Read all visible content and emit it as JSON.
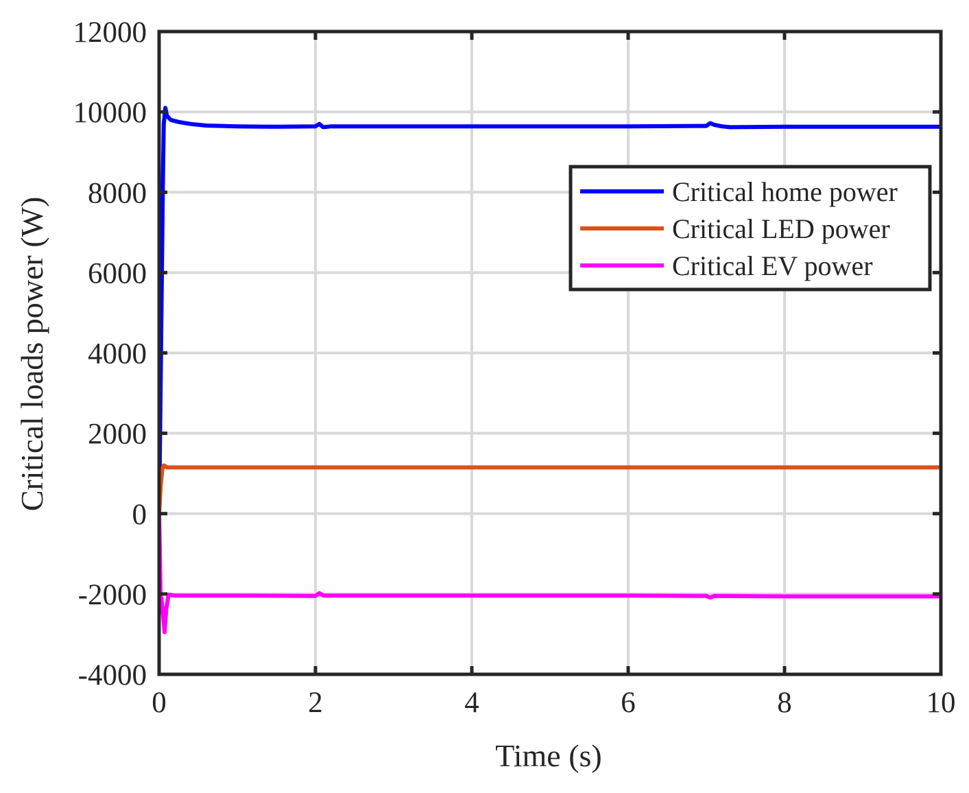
{
  "chart_data": {
    "type": "line",
    "title": "",
    "xlabel": "Time (s)",
    "ylabel": "Critical loads power (W)",
    "xlim": [
      0,
      10
    ],
    "ylim": [
      -4000,
      12000
    ],
    "xticks": [
      0,
      2,
      4,
      6,
      8,
      10
    ],
    "yticks": [
      -4000,
      -2000,
      0,
      2000,
      4000,
      6000,
      8000,
      10000,
      12000
    ],
    "xtick_labels": [
      "0",
      "2",
      "4",
      "6",
      "8",
      "10"
    ],
    "ytick_labels": [
      "-4000",
      "-2000",
      "0",
      "2000",
      "4000",
      "6000",
      "8000",
      "10000",
      "12000"
    ],
    "grid": true,
    "legend_position": "top-right",
    "series": [
      {
        "name": "Critical home power",
        "color": "#0000FF",
        "x": [
          0,
          0.01,
          0.03,
          0.05,
          0.06,
          0.08,
          0.1,
          0.15,
          0.25,
          0.4,
          0.6,
          0.8,
          1.0,
          1.5,
          2.0,
          2.05,
          2.08,
          2.1,
          2.2,
          3,
          4,
          5,
          6,
          7.0,
          7.05,
          7.1,
          7.2,
          7.3,
          8,
          9,
          10
        ],
        "y": [
          0,
          1500,
          5000,
          8500,
          9700,
          10100,
          9900,
          9800,
          9750,
          9700,
          9660,
          9650,
          9640,
          9630,
          9640,
          9700,
          9650,
          9620,
          9640,
          9640,
          9640,
          9640,
          9640,
          9650,
          9720,
          9680,
          9640,
          9620,
          9630,
          9630,
          9630
        ]
      },
      {
        "name": "Critical LED power",
        "color": "#D95319",
        "x": [
          0,
          0.02,
          0.04,
          0.06,
          0.08,
          0.1,
          0.15,
          1,
          2,
          4,
          6,
          8,
          10
        ],
        "y": [
          0,
          700,
          1100,
          1200,
          1180,
          1150,
          1150,
          1150,
          1150,
          1150,
          1150,
          1150,
          1150
        ]
      },
      {
        "name": "Critical EV power",
        "color": "#FF00FF",
        "x": [
          0,
          0.01,
          0.02,
          0.03,
          0.05,
          0.07,
          0.09,
          0.12,
          0.2,
          0.5,
          1,
          2.0,
          2.05,
          2.1,
          3,
          4,
          5,
          6,
          7.0,
          7.05,
          7.1,
          8,
          9,
          10
        ],
        "y": [
          0,
          -1000,
          -2300,
          -2100,
          -2500,
          -2950,
          -2400,
          -2020,
          -2040,
          -2040,
          -2040,
          -2050,
          -1980,
          -2040,
          -2040,
          -2040,
          -2040,
          -2040,
          -2050,
          -2090,
          -2050,
          -2060,
          -2060,
          -2060
        ]
      }
    ]
  }
}
